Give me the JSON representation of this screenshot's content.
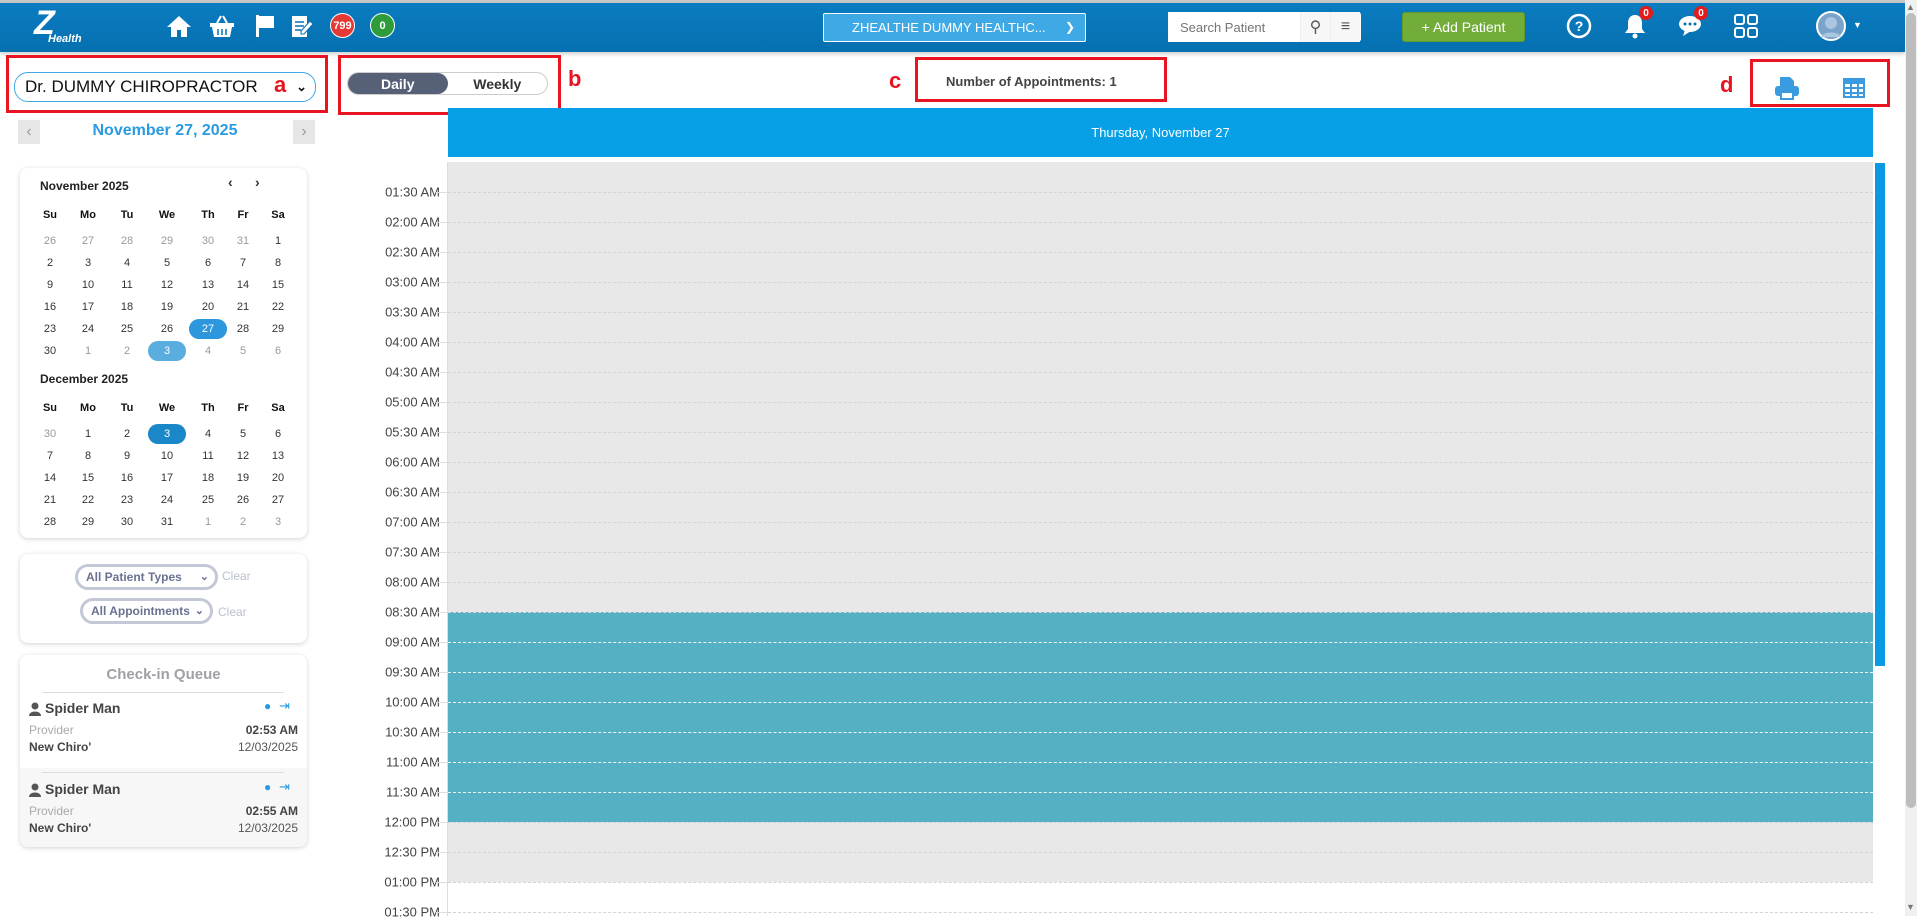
{
  "navbar": {
    "logo": "Health",
    "badge_red": "799",
    "badge_green": "0",
    "org": "ZHEALTHE DUMMY HEALTHC...",
    "search_placeholder": "Search Patient",
    "add_patient": "+ Add Patient",
    "notif_count": "0",
    "msg_count": "0"
  },
  "annotations": {
    "a": "a",
    "b": "b",
    "c": "c",
    "d": "d"
  },
  "provider": "Dr. DUMMY CHIROPRACTOR",
  "view_toggle": {
    "daily": "Daily",
    "weekly": "Weekly",
    "active": "Daily"
  },
  "appointments_count": "Number of Appointments: 1",
  "current_date": "November 27, 2025",
  "calendars": [
    {
      "title": "November 2025",
      "weekdays": [
        "Su",
        "Mo",
        "Tu",
        "We",
        "Th",
        "Fr",
        "Sa"
      ],
      "weeks": [
        [
          "26",
          "27",
          "28",
          "29",
          "30",
          "31",
          "1"
        ],
        [
          "2",
          "3",
          "4",
          "5",
          "6",
          "7",
          "8"
        ],
        [
          "9",
          "10",
          "11",
          "12",
          "13",
          "14",
          "15"
        ],
        [
          "16",
          "17",
          "18",
          "19",
          "20",
          "21",
          "22"
        ],
        [
          "23",
          "24",
          "25",
          "26",
          "27",
          "28",
          "29"
        ],
        [
          "30",
          "1",
          "2",
          "3",
          "4",
          "5",
          "6"
        ]
      ],
      "other_month": [
        [
          0,
          0
        ],
        [
          0,
          1
        ],
        [
          0,
          2
        ],
        [
          0,
          3
        ],
        [
          0,
          4
        ],
        [
          0,
          5
        ],
        [
          5,
          1
        ],
        [
          5,
          2
        ],
        [
          5,
          4
        ],
        [
          5,
          5
        ],
        [
          5,
          6
        ]
      ],
      "today": [
        4,
        4
      ],
      "selected": [
        5,
        3
      ]
    },
    {
      "title": "December 2025",
      "weekdays": [
        "Su",
        "Mo",
        "Tu",
        "We",
        "Th",
        "Fr",
        "Sa"
      ],
      "weeks": [
        [
          "30",
          "1",
          "2",
          "3",
          "4",
          "5",
          "6"
        ],
        [
          "7",
          "8",
          "9",
          "10",
          "11",
          "12",
          "13"
        ],
        [
          "14",
          "15",
          "16",
          "17",
          "18",
          "19",
          "20"
        ],
        [
          "21",
          "22",
          "23",
          "24",
          "25",
          "26",
          "27"
        ],
        [
          "28",
          "29",
          "30",
          "31",
          "1",
          "2",
          "3"
        ]
      ],
      "other_month": [
        [
          0,
          0
        ],
        [
          4,
          4
        ],
        [
          4,
          5
        ],
        [
          4,
          6
        ]
      ],
      "selected": [
        0,
        3
      ]
    }
  ],
  "filters": {
    "patient_types": "All Patient Types",
    "appointments": "All Appointments",
    "clear": "Clear"
  },
  "checkin_queue": {
    "title": "Check-in Queue",
    "entries": [
      {
        "name": "Spider Man",
        "role": "Provider",
        "provider": "New Chiro'",
        "time": "02:53 AM",
        "date": "12/03/2025"
      },
      {
        "name": "Spider Man",
        "role": "Provider",
        "provider": "New Chiro'",
        "time": "02:55 AM",
        "date": "12/03/2025"
      }
    ]
  },
  "schedule": {
    "day_header": "Thursday, November 27",
    "time_labels": [
      "01:30 AM",
      "02:00 AM",
      "02:30 AM",
      "03:00 AM",
      "03:30 AM",
      "04:00 AM",
      "04:30 AM",
      "05:00 AM",
      "05:30 AM",
      "06:00 AM",
      "06:30 AM",
      "07:00 AM",
      "07:30 AM",
      "08:00 AM",
      "08:30 AM",
      "09:00 AM",
      "09:30 AM",
      "10:00 AM",
      "10:30 AM",
      "11:00 AM",
      "11:30 AM",
      "12:00 PM",
      "12:30 PM",
      "01:00 PM",
      "01:30 PM"
    ],
    "unavailable_until": "01:00 PM",
    "block": {
      "start": "08:30 AM",
      "end": "12:00 PM",
      "color": "#55b0c3"
    }
  },
  "colors": {
    "nav": "#0670b0",
    "accent": "#07a0e6",
    "add_patient": "#72ad3a"
  }
}
